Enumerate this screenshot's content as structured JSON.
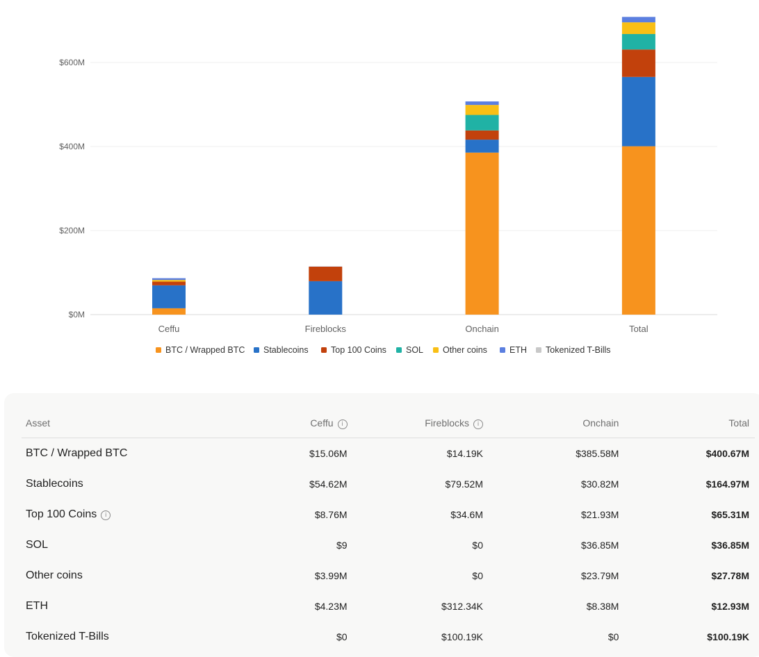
{
  "chart_data": {
    "type": "bar",
    "stacked": true,
    "categories": [
      "Ceffu",
      "Fireblocks",
      "Onchain",
      "Total"
    ],
    "y_ticks": [
      "$0M",
      "$200M",
      "$400M",
      "$600M"
    ],
    "ylim": [
      0,
      720
    ],
    "grid": true,
    "legend_position": "bottom",
    "series": [
      {
        "name": "BTC / Wrapped BTC",
        "color": "#f7931e",
        "values": [
          15.06,
          0.01419,
          385.58,
          400.67
        ]
      },
      {
        "name": "Stablecoins",
        "color": "#2872c8",
        "values": [
          54.62,
          79.52,
          30.82,
          164.97
        ]
      },
      {
        "name": "Top 100 Coins",
        "color": "#c2410c",
        "values": [
          8.76,
          34.6,
          21.93,
          65.31
        ]
      },
      {
        "name": "SOL",
        "color": "#20b2a5",
        "values": [
          9e-06,
          0,
          36.85,
          36.85
        ]
      },
      {
        "name": "Other coins",
        "color": "#f9bf15",
        "values": [
          3.99,
          0,
          23.79,
          27.78
        ]
      },
      {
        "name": "ETH",
        "color": "#5b7fe0",
        "values": [
          4.23,
          0.31234,
          8.38,
          12.93
        ]
      },
      {
        "name": "Tokenized T-Bills",
        "color": "#c8c8c8",
        "values": [
          0,
          0.10019,
          0,
          0.10019
        ]
      }
    ]
  },
  "table": {
    "headers": {
      "asset": "Asset",
      "ceffu": "Ceffu",
      "fireblocks": "Fireblocks",
      "onchain": "Onchain",
      "total": "Total"
    },
    "rows": [
      {
        "asset": "BTC / Wrapped BTC",
        "ceffu": "$15.06M",
        "fireblocks": "$14.19K",
        "onchain": "$385.58M",
        "total": "$400.67M"
      },
      {
        "asset": "Stablecoins",
        "ceffu": "$54.62M",
        "fireblocks": "$79.52M",
        "onchain": "$30.82M",
        "total": "$164.97M"
      },
      {
        "asset": "Top 100 Coins",
        "ceffu": "$8.76M",
        "fireblocks": "$34.6M",
        "onchain": "$21.93M",
        "total": "$65.31M",
        "info": true
      },
      {
        "asset": "SOL",
        "ceffu": "$9",
        "fireblocks": "$0",
        "onchain": "$36.85M",
        "total": "$36.85M"
      },
      {
        "asset": "Other coins",
        "ceffu": "$3.99M",
        "fireblocks": "$0",
        "onchain": "$23.79M",
        "total": "$27.78M"
      },
      {
        "asset": "ETH",
        "ceffu": "$4.23M",
        "fireblocks": "$312.34K",
        "onchain": "$8.38M",
        "total": "$12.93M"
      },
      {
        "asset": "Tokenized T-Bills",
        "ceffu": "$0",
        "fireblocks": "$100.19K",
        "onchain": "$0",
        "total": "$100.19K"
      }
    ],
    "info_icon": "info-icon"
  }
}
